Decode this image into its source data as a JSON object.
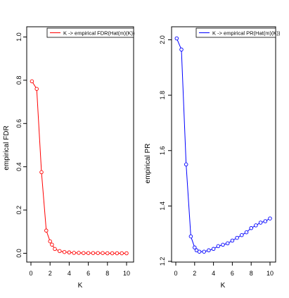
{
  "chart_data": [
    {
      "type": "line",
      "xlabel": "K",
      "ylabel": "empirical FDR",
      "xlim": [
        0,
        10
      ],
      "ylim": [
        0,
        1.0
      ],
      "xticks": [
        "0",
        "2",
        "4",
        "6",
        "8",
        "10"
      ],
      "yticks": [
        "0.0",
        "0.2",
        "0.4",
        "0.6",
        "0.8",
        "1.0"
      ],
      "legend": "top-right",
      "color": "#ff0000",
      "series": [
        {
          "name": "K -> empirical FDR(Hat(m)(K))",
          "x": [
            0.1,
            0.6,
            1.1,
            1.6,
            2.0,
            2.2,
            2.5,
            3.0,
            3.5,
            4.0,
            4.5,
            5.0,
            5.5,
            6.0,
            6.5,
            7.0,
            7.5,
            8.0,
            8.5,
            9.0,
            9.5,
            10.0
          ],
          "y": [
            0.795,
            0.76,
            0.375,
            0.105,
            0.055,
            0.04,
            0.02,
            0.01,
            0.006,
            0.004,
            0.002,
            0.002,
            0.001,
            0.001,
            0.001,
            0.001,
            0.001,
            0.0,
            0.0,
            0.0,
            0.0,
            0.0
          ]
        }
      ]
    },
    {
      "type": "line",
      "xlabel": "K",
      "ylabel": "empirical PR",
      "xlim": [
        0,
        10
      ],
      "ylim": [
        1.2,
        2.05
      ],
      "xticks": [
        "0",
        "2",
        "4",
        "6",
        "8",
        "10"
      ],
      "yticks": [
        "1.2",
        "1.4",
        "1.6",
        "1.8",
        "2.0"
      ],
      "legend": "top-right",
      "color": "#0000ff",
      "series": [
        {
          "name": "K -> empirical PR(Hat(m)(K))",
          "x": [
            0.1,
            0.6,
            1.1,
            1.6,
            2.0,
            2.2,
            2.5,
            3.0,
            3.5,
            4.0,
            4.5,
            5.0,
            5.5,
            6.0,
            6.5,
            7.0,
            7.5,
            8.0,
            8.5,
            9.0,
            9.5,
            10.0
          ],
          "y": [
            2.005,
            1.965,
            1.55,
            1.29,
            1.25,
            1.24,
            1.235,
            1.235,
            1.24,
            1.245,
            1.255,
            1.26,
            1.265,
            1.275,
            1.285,
            1.295,
            1.305,
            1.32,
            1.33,
            1.34,
            1.345,
            1.355
          ]
        }
      ]
    }
  ]
}
